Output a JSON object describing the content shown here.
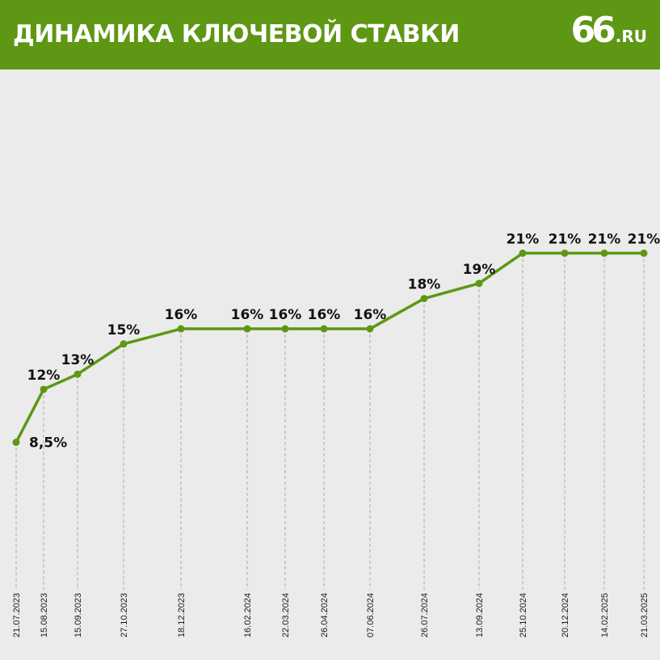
{
  "header": {
    "title": "ДИНАМИКА КЛЮЧЕВОЙ СТАВКИ",
    "logo_number": "66",
    "logo_suffix": ".RU"
  },
  "colors": {
    "header_bg": "#5e9714",
    "line": "#5e9714",
    "background": "#ebebeb"
  },
  "chart_data": {
    "type": "line",
    "title": "ДИНАМИКА КЛЮЧЕВОЙ СТАВКИ",
    "xlabel": "",
    "ylabel": "",
    "ylim": [
      0,
      25
    ],
    "grid": false,
    "categories": [
      "21.07.2023",
      "15.08.2023",
      "15.09.2023",
      "27.10.2023",
      "18.12.2023",
      "16.02.2024",
      "22.03.2024",
      "26.04.2024",
      "07.06.2024",
      "26.07.2024",
      "13.09.2024",
      "25.10.2024",
      "20.12.2024",
      "14.02.2025",
      "21.03.2025"
    ],
    "values": [
      8.5,
      12,
      13,
      15,
      16,
      16,
      16,
      16,
      16,
      18,
      19,
      21,
      21,
      21,
      21
    ],
    "labels": [
      "8,5%",
      "12%",
      "13%",
      "15%",
      "16%",
      "16%",
      "16%",
      "16%",
      "16%",
      "18%",
      "19%",
      "21%",
      "21%",
      "21%",
      "21%"
    ]
  }
}
